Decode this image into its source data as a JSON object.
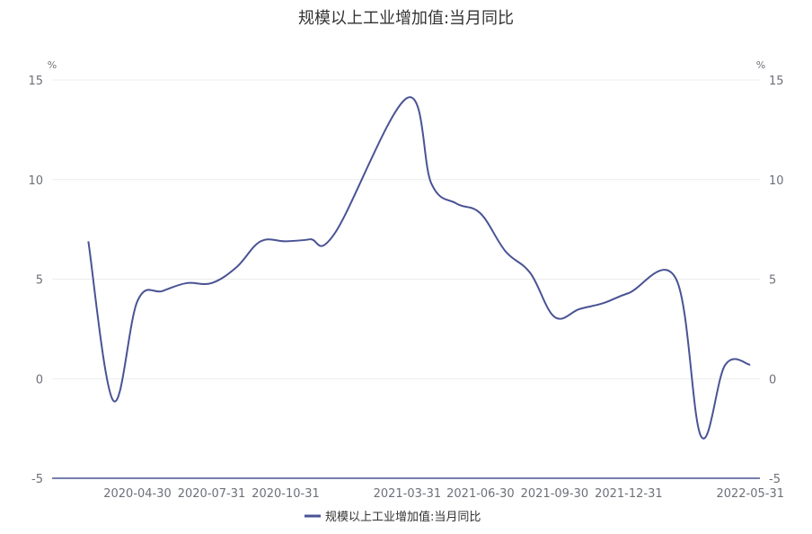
{
  "chart_data": {
    "type": "line",
    "title": "规模以上工业增加值:当月同比",
    "y_unit_left": "%",
    "y_unit_right": "%",
    "ylim": [
      -5,
      15
    ],
    "y_ticks": [
      "15",
      "10",
      "5",
      "0",
      "-5"
    ],
    "x_tick_labels": [
      "2020-04-30",
      "2020-07-31",
      "2020-10-31",
      "2021-03-31",
      "2021-06-30",
      "2021-09-30",
      "2021-12-31",
      "2022-05-31"
    ],
    "grid": true,
    "legend_position": "bottom-center",
    "series": [
      {
        "name": "规模以上工业增加值:当月同比",
        "color": "#4a5394",
        "x": [
          "2020-02-29",
          "2020-03-31",
          "2020-04-30",
          "2020-05-31",
          "2020-06-30",
          "2020-07-31",
          "2020-08-31",
          "2020-09-30",
          "2020-10-31",
          "2020-11-30",
          "2020-12-31",
          "2021-03-31",
          "2021-04-30",
          "2021-05-31",
          "2021-06-30",
          "2021-07-31",
          "2021-08-31",
          "2021-09-30",
          "2021-10-31",
          "2021-11-30",
          "2021-12-31",
          "2022-02-28",
          "2022-03-31",
          "2022-04-30",
          "2022-05-31"
        ],
        "values": [
          6.9,
          -1.1,
          3.9,
          4.4,
          4.8,
          4.8,
          5.6,
          6.9,
          6.9,
          7.0,
          7.3,
          14.1,
          9.8,
          8.8,
          8.3,
          6.4,
          5.3,
          3.1,
          3.5,
          3.8,
          4.3,
          5.0,
          -2.9,
          0.7,
          0.7
        ]
      }
    ]
  }
}
